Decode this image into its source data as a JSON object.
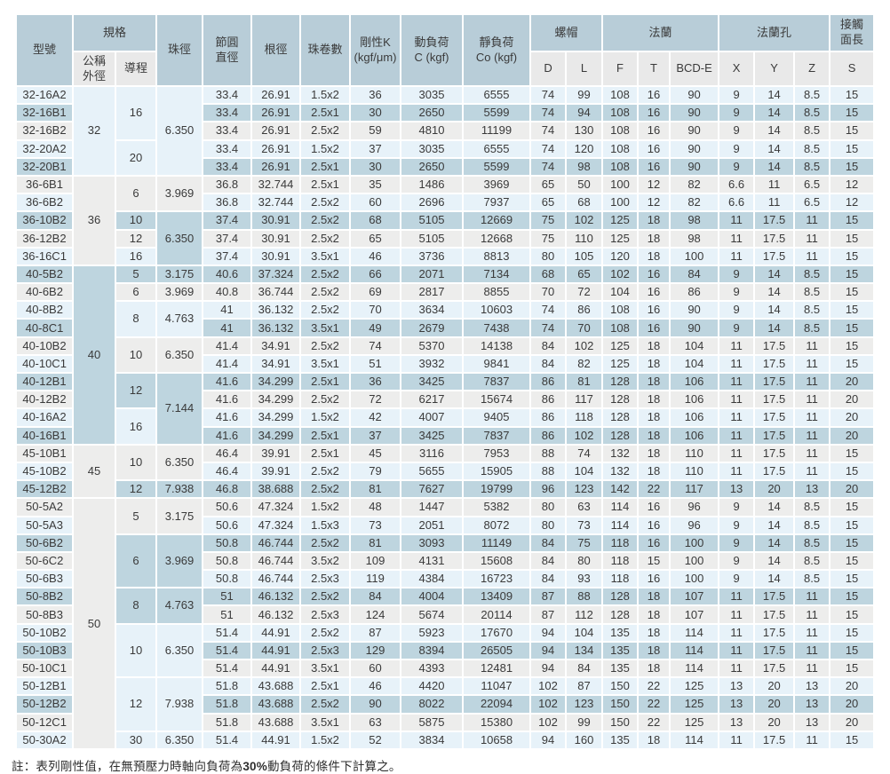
{
  "table": {
    "headers": {
      "model": "型號",
      "spec": "規格",
      "nominal_od": "公稱\n外徑",
      "lead": "導程",
      "ball_dia": "珠徑",
      "pitch_dia": "節圓\n直徑",
      "root_dia": "根徑",
      "circuits": "珠卷數",
      "rigidity": "剛性K\n(kgf/μm)",
      "dynamic_load": "動負荷\nC (kgf)",
      "static_load": "靜負荷\nCo (kgf)",
      "nut": "螺帽",
      "flange": "法蘭",
      "flange_holes": "法蘭孔",
      "contact_length": "接觸\n面長",
      "sub_columns": [
        "D",
        "L",
        "F",
        "T",
        "BCD-E",
        "X",
        "Y",
        "Z",
        "S"
      ]
    },
    "od_groups": [
      {
        "label": "32",
        "start": 1,
        "rows": 5
      },
      {
        "label": "36",
        "start": 6,
        "rows": 5
      },
      {
        "label": "40",
        "start": 11,
        "rows": 10
      },
      {
        "label": "45",
        "start": 21,
        "rows": 3
      },
      {
        "label": "50",
        "start": 24,
        "rows": 14
      }
    ],
    "lead_groups": [
      {
        "label": "16",
        "start": 1,
        "rows": 3
      },
      {
        "label": "20",
        "start": 4,
        "rows": 2
      },
      {
        "label": "6",
        "start": 6,
        "rows": 2
      },
      {
        "label": "10",
        "start": 8,
        "rows": 1
      },
      {
        "label": "12",
        "start": 9,
        "rows": 1
      },
      {
        "label": "16",
        "start": 10,
        "rows": 1
      },
      {
        "label": "5",
        "start": 11,
        "rows": 1
      },
      {
        "label": "6",
        "start": 12,
        "rows": 1
      },
      {
        "label": "8",
        "start": 13,
        "rows": 2
      },
      {
        "label": "10",
        "start": 15,
        "rows": 2
      },
      {
        "label": "12",
        "start": 17,
        "rows": 2
      },
      {
        "label": "16",
        "start": 19,
        "rows": 2
      },
      {
        "label": "10",
        "start": 21,
        "rows": 2
      },
      {
        "label": "12",
        "start": 23,
        "rows": 1
      },
      {
        "label": "5",
        "start": 24,
        "rows": 2
      },
      {
        "label": "6",
        "start": 26,
        "rows": 3
      },
      {
        "label": "8",
        "start": 29,
        "rows": 2
      },
      {
        "label": "10",
        "start": 31,
        "rows": 3
      },
      {
        "label": "12",
        "start": 34,
        "rows": 3
      },
      {
        "label": "30",
        "start": 37,
        "rows": 1
      }
    ],
    "ball_dia_groups": [
      {
        "label": "6.350",
        "start": 1,
        "rows": 5
      },
      {
        "label": "3.969",
        "start": 6,
        "rows": 2
      },
      {
        "label": "6.350",
        "start": 8,
        "rows": 3
      },
      {
        "label": "3.175",
        "start": 11,
        "rows": 1
      },
      {
        "label": "3.969",
        "start": 12,
        "rows": 1
      },
      {
        "label": "4.763",
        "start": 13,
        "rows": 2
      },
      {
        "label": "6.350",
        "start": 15,
        "rows": 2
      },
      {
        "label": "7.144",
        "start": 17,
        "rows": 4
      },
      {
        "label": "6.350",
        "start": 21,
        "rows": 2
      },
      {
        "label": "7.938",
        "start": 23,
        "rows": 1
      },
      {
        "label": "3.175",
        "start": 24,
        "rows": 2
      },
      {
        "label": "3.969",
        "start": 26,
        "rows": 3
      },
      {
        "label": "4.763",
        "start": 29,
        "rows": 2
      },
      {
        "label": "6.350",
        "start": 31,
        "rows": 3
      },
      {
        "label": "7.938",
        "start": 34,
        "rows": 3
      },
      {
        "label": "6.350",
        "start": 37,
        "rows": 1
      }
    ],
    "rows": [
      [
        "32-16A2",
        "33.4",
        "26.91",
        "1.5x2",
        "36",
        "3035",
        "6555",
        "74",
        "99",
        "108",
        "16",
        "90",
        "9",
        "14",
        "8.5",
        "15"
      ],
      [
        "32-16B1",
        "33.4",
        "26.91",
        "2.5x1",
        "30",
        "2650",
        "5599",
        "74",
        "94",
        "108",
        "16",
        "90",
        "9",
        "14",
        "8.5",
        "15"
      ],
      [
        "32-16B2",
        "33.4",
        "26.91",
        "2.5x2",
        "59",
        "4810",
        "11199",
        "74",
        "130",
        "108",
        "16",
        "90",
        "9",
        "14",
        "8.5",
        "15"
      ],
      [
        "32-20A2",
        "33.4",
        "26.91",
        "1.5x2",
        "37",
        "3035",
        "6555",
        "74",
        "120",
        "108",
        "16",
        "90",
        "9",
        "14",
        "8.5",
        "15"
      ],
      [
        "32-20B1",
        "33.4",
        "26.91",
        "2.5x1",
        "30",
        "2650",
        "5599",
        "74",
        "98",
        "108",
        "16",
        "90",
        "9",
        "14",
        "8.5",
        "15"
      ],
      [
        "36-6B1",
        "36.8",
        "32.744",
        "2.5x1",
        "35",
        "1486",
        "3969",
        "65",
        "50",
        "100",
        "12",
        "82",
        "6.6",
        "11",
        "6.5",
        "12"
      ],
      [
        "36-6B2",
        "36.8",
        "32.744",
        "2.5x2",
        "60",
        "2696",
        "7937",
        "65",
        "68",
        "100",
        "12",
        "82",
        "6.6",
        "11",
        "6.5",
        "12"
      ],
      [
        "36-10B2",
        "37.4",
        "30.91",
        "2.5x2",
        "68",
        "5105",
        "12669",
        "75",
        "102",
        "125",
        "18",
        "98",
        "11",
        "17.5",
        "11",
        "15"
      ],
      [
        "36-12B2",
        "37.4",
        "30.91",
        "2.5x2",
        "65",
        "5105",
        "12668",
        "75",
        "110",
        "125",
        "18",
        "98",
        "11",
        "17.5",
        "11",
        "15"
      ],
      [
        "36-16C1",
        "37.4",
        "30.91",
        "3.5x1",
        "46",
        "3736",
        "8813",
        "80",
        "105",
        "120",
        "18",
        "100",
        "11",
        "17.5",
        "11",
        "15"
      ],
      [
        "40-5B2",
        "40.6",
        "37.324",
        "2.5x2",
        "66",
        "2071",
        "7134",
        "68",
        "65",
        "102",
        "16",
        "84",
        "9",
        "14",
        "8.5",
        "15"
      ],
      [
        "40-6B2",
        "40.8",
        "36.744",
        "2.5x2",
        "69",
        "2817",
        "8855",
        "70",
        "72",
        "104",
        "16",
        "86",
        "9",
        "14",
        "8.5",
        "15"
      ],
      [
        "40-8B2",
        "41",
        "36.132",
        "2.5x2",
        "70",
        "3634",
        "10603",
        "74",
        "86",
        "108",
        "16",
        "90",
        "9",
        "14",
        "8.5",
        "15"
      ],
      [
        "40-8C1",
        "41",
        "36.132",
        "3.5x1",
        "49",
        "2679",
        "7438",
        "74",
        "70",
        "108",
        "16",
        "90",
        "9",
        "14",
        "8.5",
        "15"
      ],
      [
        "40-10B2",
        "41.4",
        "34.91",
        "2.5x2",
        "74",
        "5370",
        "14138",
        "84",
        "102",
        "125",
        "18",
        "104",
        "11",
        "17.5",
        "11",
        "15"
      ],
      [
        "40-10C1",
        "41.4",
        "34.91",
        "3.5x1",
        "51",
        "3932",
        "9841",
        "84",
        "82",
        "125",
        "18",
        "104",
        "11",
        "17.5",
        "11",
        "15"
      ],
      [
        "40-12B1",
        "41.6",
        "34.299",
        "2.5x1",
        "36",
        "3425",
        "7837",
        "86",
        "81",
        "128",
        "18",
        "106",
        "11",
        "17.5",
        "11",
        "20"
      ],
      [
        "40-12B2",
        "41.6",
        "34.299",
        "2.5x2",
        "72",
        "6217",
        "15674",
        "86",
        "117",
        "128",
        "18",
        "106",
        "11",
        "17.5",
        "11",
        "20"
      ],
      [
        "40-16A2",
        "41.6",
        "34.299",
        "1.5x2",
        "42",
        "4007",
        "9405",
        "86",
        "118",
        "128",
        "18",
        "106",
        "11",
        "17.5",
        "11",
        "20"
      ],
      [
        "40-16B1",
        "41.6",
        "34.299",
        "2.5x1",
        "37",
        "3425",
        "7837",
        "86",
        "102",
        "128",
        "18",
        "106",
        "11",
        "17.5",
        "11",
        "20"
      ],
      [
        "45-10B1",
        "46.4",
        "39.91",
        "2.5x1",
        "45",
        "3116",
        "7953",
        "88",
        "74",
        "132",
        "18",
        "110",
        "11",
        "17.5",
        "11",
        "15"
      ],
      [
        "45-10B2",
        "46.4",
        "39.91",
        "2.5x2",
        "79",
        "5655",
        "15905",
        "88",
        "104",
        "132",
        "18",
        "110",
        "11",
        "17.5",
        "11",
        "15"
      ],
      [
        "45-12B2",
        "46.8",
        "38.688",
        "2.5x2",
        "81",
        "7627",
        "19799",
        "96",
        "123",
        "142",
        "22",
        "117",
        "13",
        "20",
        "13",
        "20"
      ],
      [
        "50-5A2",
        "50.6",
        "47.324",
        "1.5x2",
        "48",
        "1447",
        "5382",
        "80",
        "63",
        "114",
        "16",
        "96",
        "9",
        "14",
        "8.5",
        "15"
      ],
      [
        "50-5A3",
        "50.6",
        "47.324",
        "1.5x3",
        "73",
        "2051",
        "8072",
        "80",
        "73",
        "114",
        "16",
        "96",
        "9",
        "14",
        "8.5",
        "15"
      ],
      [
        "50-6B2",
        "50.8",
        "46.744",
        "2.5x2",
        "81",
        "3093",
        "11149",
        "84",
        "75",
        "118",
        "16",
        "100",
        "9",
        "14",
        "8.5",
        "15"
      ],
      [
        "50-6C2",
        "50.8",
        "46.744",
        "3.5x2",
        "109",
        "4131",
        "15608",
        "84",
        "80",
        "118",
        "15",
        "100",
        "9",
        "14",
        "8.5",
        "15"
      ],
      [
        "50-6B3",
        "50.8",
        "46.744",
        "2.5x3",
        "119",
        "4384",
        "16723",
        "84",
        "93",
        "118",
        "16",
        "100",
        "9",
        "14",
        "8.5",
        "15"
      ],
      [
        "50-8B2",
        "51",
        "46.132",
        "2.5x2",
        "84",
        "4004",
        "13409",
        "87",
        "88",
        "128",
        "18",
        "107",
        "11",
        "17.5",
        "11",
        "15"
      ],
      [
        "50-8B3",
        "51",
        "46.132",
        "2.5x3",
        "124",
        "5674",
        "20114",
        "87",
        "112",
        "128",
        "18",
        "107",
        "11",
        "17.5",
        "11",
        "15"
      ],
      [
        "50-10B2",
        "51.4",
        "44.91",
        "2.5x2",
        "87",
        "5923",
        "17670",
        "94",
        "104",
        "135",
        "18",
        "114",
        "11",
        "17.5",
        "11",
        "15"
      ],
      [
        "50-10B3",
        "51.4",
        "44.91",
        "2.5x3",
        "129",
        "8394",
        "26505",
        "94",
        "134",
        "135",
        "18",
        "114",
        "11",
        "17.5",
        "11",
        "15"
      ],
      [
        "50-10C1",
        "51.4",
        "44.91",
        "3.5x1",
        "60",
        "4393",
        "12481",
        "94",
        "84",
        "135",
        "18",
        "114",
        "11",
        "17.5",
        "11",
        "15"
      ],
      [
        "50-12B1",
        "51.8",
        "43.688",
        "2.5x1",
        "46",
        "4420",
        "11047",
        "102",
        "87",
        "150",
        "22",
        "125",
        "13",
        "20",
        "13",
        "20"
      ],
      [
        "50-12B2",
        "51.8",
        "43.688",
        "2.5x2",
        "90",
        "8022",
        "22094",
        "102",
        "123",
        "150",
        "22",
        "125",
        "13",
        "20",
        "13",
        "20"
      ],
      [
        "50-12C1",
        "51.8",
        "43.688",
        "3.5x1",
        "63",
        "5875",
        "15380",
        "102",
        "99",
        "150",
        "22",
        "125",
        "13",
        "20",
        "13",
        "20"
      ],
      [
        "50-30A2",
        "51.4",
        "44.91",
        "1.5x2",
        "52",
        "3834",
        "10658",
        "94",
        "160",
        "135",
        "18",
        "114",
        "11",
        "17.5",
        "11",
        "15"
      ]
    ]
  },
  "note": {
    "prefix": "註：表列剛性值，在無預壓力時軸向負荷為",
    "highlight": "30%",
    "suffix": "動負荷的條件下計算之。"
  },
  "colors": {
    "header": "#b8cdd8",
    "sub_header": "#e9e9e9",
    "stripe_light_blue": "#e7f2f9",
    "stripe_medium_blue": "#bed5df",
    "stripe_gray": "#ededec",
    "gridline": "#ffffff",
    "text": "#3a3a3a"
  }
}
